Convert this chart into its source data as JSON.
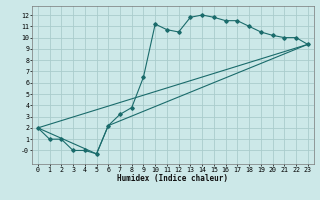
{
  "xlabel": "Humidex (Indice chaleur)",
  "bg_color": "#cce8e8",
  "grid_color": "#aacccc",
  "line_color": "#1a6b6b",
  "xlim": [
    -0.5,
    23.5
  ],
  "ylim": [
    -1.2,
    12.8
  ],
  "xticks": [
    0,
    1,
    2,
    3,
    4,
    5,
    6,
    7,
    8,
    9,
    10,
    11,
    12,
    13,
    14,
    15,
    16,
    17,
    18,
    19,
    20,
    21,
    22,
    23
  ],
  "yticks": [
    0,
    1,
    2,
    3,
    4,
    5,
    6,
    7,
    8,
    9,
    10,
    11,
    12
  ],
  "ytick_labels": [
    "-0",
    "1",
    "2",
    "3",
    "4",
    "5",
    "6",
    "7",
    "8",
    "9",
    "10",
    "11",
    "12"
  ],
  "line1_x": [
    0,
    1,
    2,
    3,
    4,
    5,
    6,
    7,
    8,
    9,
    10,
    11,
    12,
    13,
    14,
    15,
    16,
    17,
    18,
    19,
    20,
    21,
    22,
    23
  ],
  "line1_y": [
    2,
    1,
    1,
    0,
    0,
    -0.3,
    2.2,
    3.2,
    3.8,
    6.5,
    11.2,
    10.7,
    10.5,
    11.8,
    12.0,
    11.8,
    11.5,
    11.5,
    11.0,
    10.5,
    10.2,
    10.0,
    10.0,
    9.4
  ],
  "line2_x": [
    0,
    23
  ],
  "line2_y": [
    2,
    9.4
  ],
  "line3_x": [
    0,
    5,
    6,
    23
  ],
  "line3_y": [
    2,
    -0.3,
    2.2,
    9.4
  ]
}
